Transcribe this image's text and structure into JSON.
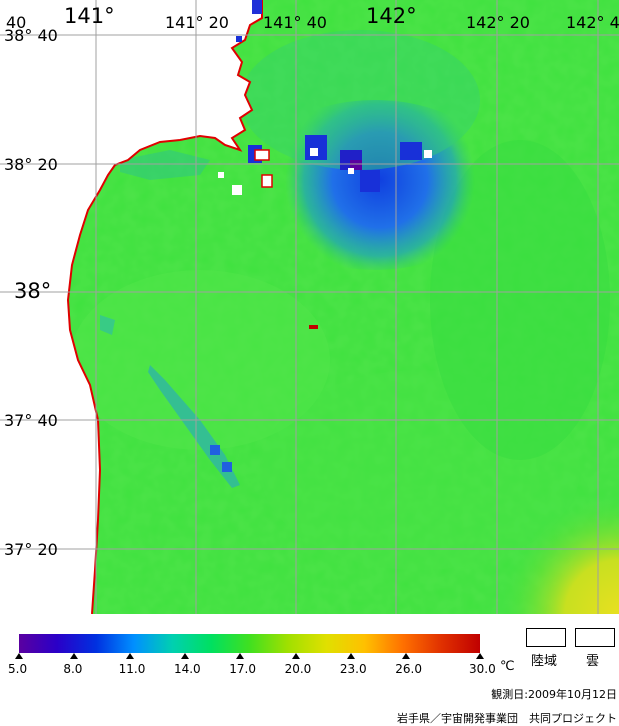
{
  "map": {
    "longitude_labels": [
      "141°",
      "141° 20",
      "141° 40",
      "142°",
      "142° 20",
      "142° 4"
    ],
    "latitude_labels": [
      "40",
      "38° 40",
      "38° 20",
      "38°",
      "37° 40",
      "37° 20"
    ]
  },
  "colorbar": {
    "ticks": [
      "5.0",
      "8.0",
      "11.0",
      "14.0",
      "17.0",
      "20.0",
      "23.0",
      "26.0",
      "30.0"
    ],
    "unit": "℃",
    "range": [
      5.0,
      30.0
    ],
    "colors": [
      "#5a00a0",
      "#2a00c8",
      "#0030e0",
      "#0090ff",
      "#00d0b0",
      "#00e060",
      "#40e020",
      "#a0e000",
      "#e0e000",
      "#ffc000",
      "#ff7000",
      "#e03000",
      "#c00000"
    ]
  },
  "legend": {
    "land_label": "陸域",
    "cloud_label": "雲"
  },
  "footer": {
    "observation_date": "観測日:2009年10月12日",
    "credit": "岩手県／宇宙開発事業団　共同プロジェクト"
  }
}
